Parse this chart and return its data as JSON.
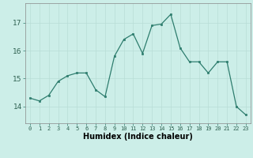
{
  "x": [
    0,
    1,
    2,
    3,
    4,
    5,
    6,
    7,
    8,
    9,
    10,
    11,
    12,
    13,
    14,
    15,
    16,
    17,
    18,
    19,
    20,
    21,
    22,
    23
  ],
  "y": [
    14.3,
    14.2,
    14.4,
    14.9,
    15.1,
    15.2,
    15.2,
    14.6,
    14.35,
    15.8,
    16.4,
    16.6,
    15.9,
    16.9,
    16.95,
    17.3,
    16.1,
    15.6,
    15.6,
    15.2,
    15.6,
    15.6,
    14.0,
    13.7
  ],
  "line_color": "#2e7d6e",
  "marker_color": "#2e7d6e",
  "bg_color": "#cceee8",
  "grid_color": "#b8ddd6",
  "xlabel": "Humidex (Indice chaleur)",
  "xlabel_fontsize": 7,
  "ytick_fontsize": 6.5,
  "xtick_fontsize": 5.0,
  "yticks": [
    14,
    15,
    16,
    17
  ],
  "xticks": [
    0,
    1,
    2,
    3,
    4,
    5,
    6,
    7,
    8,
    9,
    10,
    11,
    12,
    13,
    14,
    15,
    16,
    17,
    18,
    19,
    20,
    21,
    22,
    23
  ],
  "ylim": [
    13.4,
    17.7
  ],
  "xlim": [
    -0.5,
    23.5
  ]
}
